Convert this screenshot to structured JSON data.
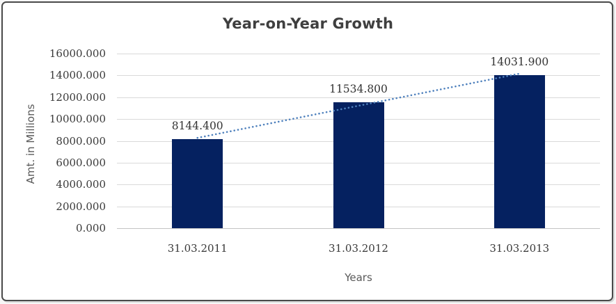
{
  "chart_data": {
    "type": "bar",
    "title": "Year-on-Year Growth",
    "xlabel": "Years",
    "ylabel": "Amt. in Millions",
    "categories": [
      "31.03.2011",
      "31.03.2012",
      "31.03.2013"
    ],
    "values": [
      8144.4,
      11534.8,
      14031.9
    ],
    "data_labels": [
      "8144.400",
      "11534.800",
      "14031.900"
    ],
    "y_ticks": [
      "16000.000",
      "14000.000",
      "12000.000",
      "10000.000",
      "8000.000",
      "6000.000",
      "4000.000",
      "2000.000",
      "0.000"
    ],
    "ylim": [
      0,
      16000
    ],
    "y_tick_step": 2000,
    "grid": true,
    "legend": "none",
    "trendline": {
      "type": "linear",
      "style": "dotted",
      "color": "#4F81BD"
    },
    "colors": {
      "bar": "#052160",
      "trendline": "#4F81BD",
      "gridline": "#D9D9D9",
      "axis_line": "#C3C3C3",
      "title_text": "#3F3F3F",
      "axis_title_text": "#595959",
      "tick_text": "#383838"
    }
  }
}
